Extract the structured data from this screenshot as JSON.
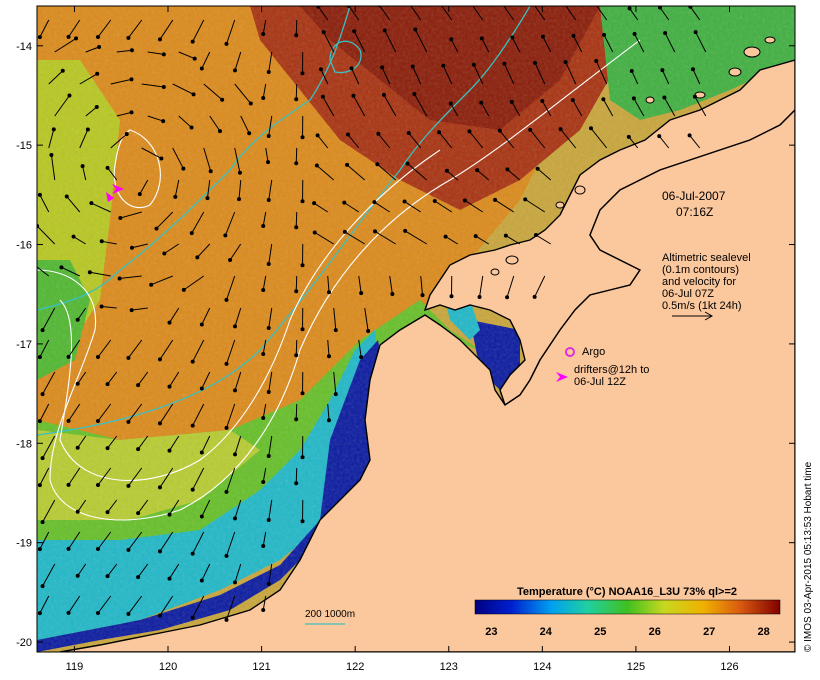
{
  "map": {
    "lon_ticks": [
      "119",
      "120",
      "121",
      "122",
      "123",
      "124",
      "125",
      "126"
    ],
    "lat_ticks": [
      "-14",
      "-15",
      "-16",
      "-17",
      "-18",
      "-19",
      "-20"
    ],
    "lon_range": [
      118.6,
      126.7
    ],
    "lat_range": [
      -20.1,
      -13.6
    ]
  },
  "annotations": {
    "date": "06-Jul-2007",
    "time": "07:16Z",
    "alt_line1": "Altimetric sealevel",
    "alt_line2": "(0.1m contours)",
    "alt_line3": "and velocity for",
    "alt_line4": "06-Jul 07Z",
    "alt_line5": "0.5m/s (1kt 24h)",
    "argo_label": "Argo",
    "drifter_line1": "drifters@12h to",
    "drifter_line2": "06-Jul 12Z",
    "isobath_label": "200  1000m"
  },
  "colorbar": {
    "title": "Temperature (°C) NOAA16_L3U 73% ql>=2",
    "ticks": [
      "23",
      "24",
      "25",
      "26",
      "27",
      "28"
    ],
    "range": [
      22.7,
      28.3
    ]
  },
  "credit": "© IMOS 03-Apr-2015 05:13:53 Hobart time",
  "colors": {
    "land": "#fbc79d",
    "isobath": "#3cc0c0",
    "contour": "#ffffff",
    "argo": "#e020e0",
    "drifter": "#ff00ff",
    "arrow": "#000000"
  }
}
